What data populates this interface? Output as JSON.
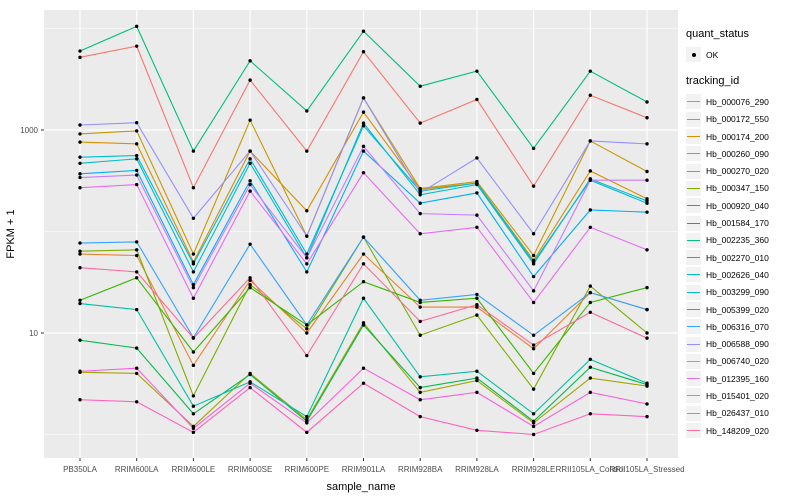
{
  "figure": {
    "xlabel": "sample_name",
    "ylabel": "FPKM + 1"
  },
  "legend": {
    "quant_status": {
      "title": "quant_status",
      "items": [
        {
          "label": "OK",
          "shape": "point",
          "color": "#000000"
        }
      ]
    },
    "tracking_id": {
      "title": "tracking_id"
    }
  },
  "colors": {
    "panel_bg": "#EBEBEB",
    "grid": "#FFFFFF",
    "axis_text": "#4D4D4D",
    "axis_title": "#000000",
    "tick_mark": "#333333",
    "legend_key_bg": "#F2F2F2",
    "point": "#000000"
  },
  "chart_data": {
    "type": "line",
    "title": "",
    "xlabel": "sample_name",
    "ylabel": "FPKM + 1",
    "x_type": "categorical",
    "y_scale": "log10",
    "grid": true,
    "legend_position": "right",
    "y_ticks": [
      10,
      1000
    ],
    "y_minor_ticks": [
      1,
      100,
      10000
    ],
    "ylim": [
      0.59,
      15000
    ],
    "point_marker": "filled-circle",
    "categories": [
      "PB350LA",
      "RRIM600LA",
      "RRIM600LE",
      "RRIM600SE",
      "RRIM600PE",
      "RRIM901LA",
      "RRIM928BA",
      "RRIM928LA",
      "RRIM928LE",
      "RRII105LA_Control",
      "RRII105LA_Stressed"
    ],
    "series": [
      {
        "name": "Hb_000076_290",
        "color": "#F8766D",
        "values": [
          5200,
          6700,
          270,
          3100,
          620,
          5900,
          1170,
          2000,
          280,
          2200,
          1320
        ]
      },
      {
        "name": "Hb_000172_550",
        "color": "#EA8331",
        "values": [
          60,
          58,
          4.8,
          33,
          10,
          60,
          18,
          18,
          7,
          25,
          17
        ]
      },
      {
        "name": "Hb_000174_200",
        "color": "#D89000",
        "values": [
          760,
          730,
          50,
          620,
          160,
          1500,
          260,
          300,
          52,
          395,
          210
        ]
      },
      {
        "name": "Hb_000260_090",
        "color": "#C49A00",
        "values": [
          915,
          980,
          60,
          1250,
          90,
          2070,
          265,
          310,
          58,
          780,
          390
        ]
      },
      {
        "name": "Hb_000270_020",
        "color": "#A3A500",
        "values": [
          4.1,
          4.0,
          1.2,
          4.0,
          1.4,
          12.6,
          2.6,
          3.4,
          1.3,
          3.6,
          3.0
        ]
      },
      {
        "name": "Hb_000347_150",
        "color": "#7CAE00",
        "values": [
          64,
          66,
          2.4,
          30,
          11,
          88,
          9.5,
          15,
          2.8,
          29,
          10
        ]
      },
      {
        "name": "Hb_000920_040",
        "color": "#39B600",
        "values": [
          21,
          35,
          6.5,
          28,
          12,
          32,
          20,
          22,
          4.0,
          20,
          28
        ]
      },
      {
        "name": "Hb_001584_170",
        "color": "#00BB4E",
        "values": [
          8.5,
          7.1,
          1.6,
          3.9,
          1.35,
          12,
          2.9,
          3.6,
          1.35,
          4.6,
          3.1
        ]
      },
      {
        "name": "Hb_002235_360",
        "color": "#00BF7D",
        "values": [
          6000,
          10500,
          620,
          4800,
          1540,
          9400,
          2700,
          3800,
          660,
          3800,
          1890
        ]
      },
      {
        "name": "Hb_002270_010",
        "color": "#00C1A3",
        "values": [
          19.5,
          17,
          1.9,
          3.3,
          1.5,
          22,
          3.7,
          4.2,
          1.6,
          5.5,
          3.2
        ]
      },
      {
        "name": "Hb_002626_040",
        "color": "#00BFC4",
        "values": [
          470,
          520,
          40,
          470,
          55,
          1170,
          230,
          290,
          48,
          330,
          200
        ]
      },
      {
        "name": "Hb_003299_090",
        "color": "#00BAE0",
        "values": [
          540,
          560,
          48,
          520,
          60,
          1100,
          250,
          300,
          50,
          320,
          190
        ]
      },
      {
        "name": "Hb_005399_020",
        "color": "#00B0F6",
        "values": [
          370,
          400,
          30,
          316,
          40,
          620,
          190,
          240,
          36,
          163,
          155
        ]
      },
      {
        "name": "Hb_006316_070",
        "color": "#35A2FF",
        "values": [
          77,
          79,
          9,
          75,
          12,
          88,
          21,
          24,
          9.5,
          25,
          17
        ]
      },
      {
        "name": "Hb_006588_090",
        "color": "#9590FF",
        "values": [
          1120,
          1180,
          135,
          620,
          90,
          2070,
          240,
          530,
          95,
          780,
          730
        ]
      },
      {
        "name": "Hb_006740_020",
        "color": "#C77CFF",
        "values": [
          340,
          360,
          28,
          290,
          55,
          690,
          150,
          145,
          26,
          320,
          320
        ]
      },
      {
        "name": "Hb_012395_160",
        "color": "#E76BF3",
        "values": [
          270,
          290,
          22,
          250,
          48,
          380,
          95,
          110,
          20,
          110,
          66
        ]
      },
      {
        "name": "Hb_015401_020",
        "color": "#FA62DB",
        "values": [
          4.2,
          4.5,
          1.15,
          3.2,
          1.3,
          4.5,
          2.2,
          2.6,
          1.2,
          2.6,
          2.0
        ]
      },
      {
        "name": "Hb_026437_010",
        "color": "#FF62BC",
        "values": [
          2.2,
          2.1,
          1.05,
          2.9,
          1.05,
          3.2,
          1.5,
          1.1,
          1.0,
          1.6,
          1.5
        ]
      },
      {
        "name": "Hb_148209_020",
        "color": "#FF6A98",
        "values": [
          44,
          40,
          8.9,
          35,
          6.0,
          48,
          13,
          19,
          7.6,
          16,
          8.9
        ]
      }
    ]
  }
}
